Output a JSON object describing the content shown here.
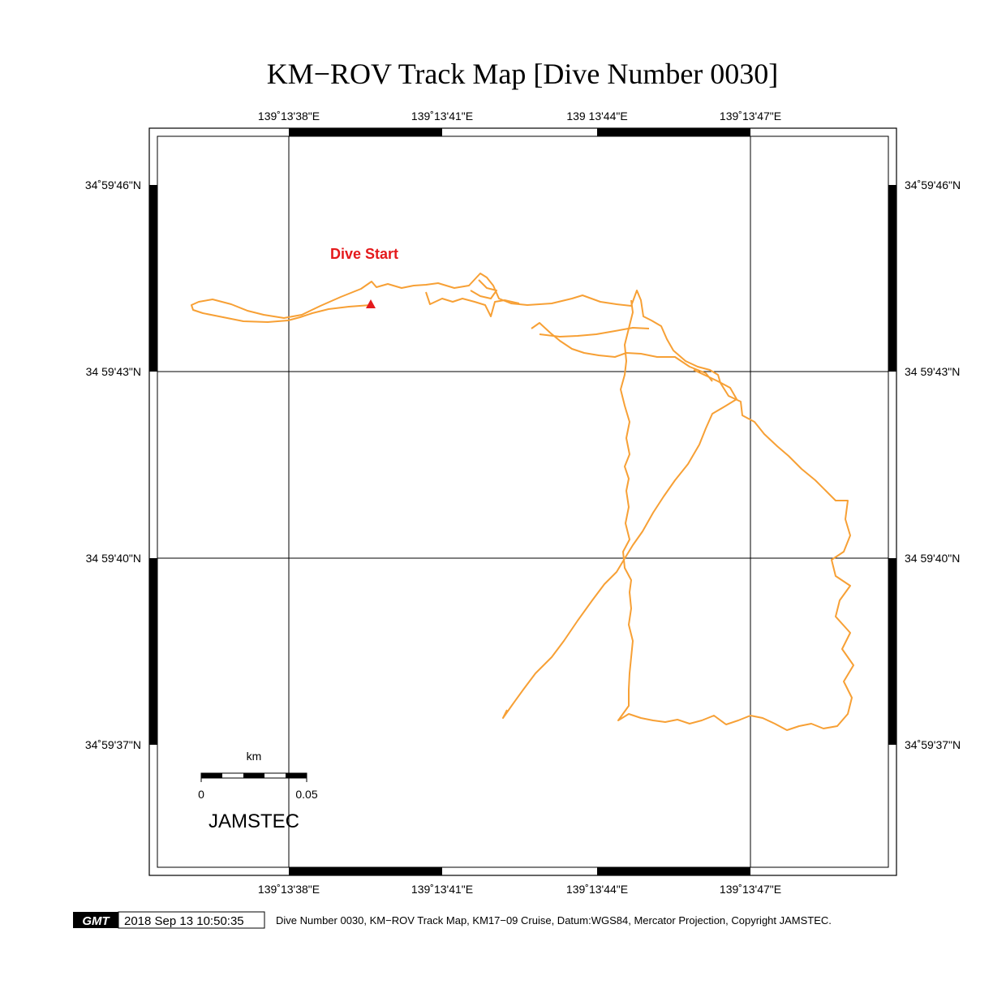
{
  "title": "KM−ROV Track Map [Dive Number 0030]",
  "axes": {
    "top_labels": [
      "139˚13'38\"E",
      "139˚13'41\"E",
      "139 13'44\"E",
      "139˚13'47\"E"
    ],
    "bottom_labels": [
      "139˚13'38\"E",
      "139˚13'41\"E",
      "139˚13'44\"E",
      "139˚13'47\"E"
    ],
    "left_labels": [
      "34˚59'46\"N",
      "34 59'43\"N",
      "34 59'40\"N",
      "34˚59'37\"N"
    ],
    "right_labels": [
      "34˚59'46\"N",
      "34 59'43\"N",
      "34 59'40\"N",
      "34˚59'37\"N"
    ]
  },
  "dive_start_label": "Dive Start",
  "scale_bar": {
    "unit": "km",
    "min_label": "0",
    "max_label": "0.05"
  },
  "watermark": "JAMSTEC",
  "footer": {
    "logo": "GMT",
    "timestamp": "2018 Sep 13 10:50:35",
    "caption": "Dive Number 0030, KM−ROV Track Map, KM17−09 Cruise, Datum:WGS84, Mercator Projection, Copyright JAMSTEC."
  },
  "colors": {
    "track": "#f7a035",
    "start_marker": "#e41a1c"
  }
}
